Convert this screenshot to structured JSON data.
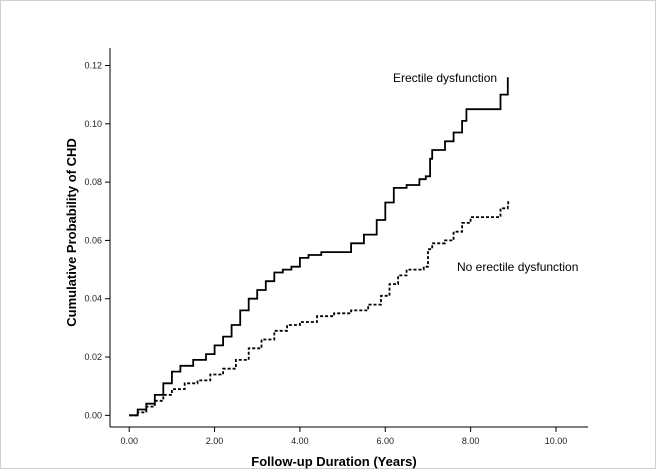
{
  "chart_data": {
    "type": "line",
    "title": "",
    "xlabel": "Follow-up Duration (Years)",
    "ylabel": "Cumulative Probability of CHD",
    "xlim": [
      -0.45,
      10.75
    ],
    "ylim": [
      -0.004,
      0.126
    ],
    "x_ticks": [
      0,
      2,
      4,
      6,
      8,
      10
    ],
    "x_tick_labels": [
      "0.00",
      "2.00",
      "4.00",
      "6.00",
      "8.00",
      "10.00"
    ],
    "y_ticks": [
      0,
      0.02,
      0.04,
      0.06,
      0.08,
      0.1,
      0.12
    ],
    "y_tick_labels": [
      "0.00",
      "0.02",
      "0.04",
      "0.06",
      "0.08",
      "0.10",
      "0.12"
    ],
    "grid": false,
    "legend": "none",
    "series": [
      {
        "name": "Erectile dysfunction",
        "style": "solid",
        "color": "#000000",
        "points": [
          [
            0,
            0
          ],
          [
            0.2,
            0.002
          ],
          [
            0.4,
            0.004
          ],
          [
            0.6,
            0.007
          ],
          [
            0.8,
            0.011
          ],
          [
            1.0,
            0.015
          ],
          [
            1.2,
            0.017
          ],
          [
            1.5,
            0.019
          ],
          [
            1.8,
            0.021
          ],
          [
            2.0,
            0.024
          ],
          [
            2.2,
            0.027
          ],
          [
            2.4,
            0.031
          ],
          [
            2.6,
            0.036
          ],
          [
            2.8,
            0.04
          ],
          [
            3.0,
            0.043
          ],
          [
            3.2,
            0.046
          ],
          [
            3.4,
            0.049
          ],
          [
            3.6,
            0.05
          ],
          [
            3.8,
            0.051
          ],
          [
            4.0,
            0.054
          ],
          [
            4.2,
            0.055
          ],
          [
            4.5,
            0.056
          ],
          [
            4.9,
            0.056
          ],
          [
            5.2,
            0.059
          ],
          [
            5.5,
            0.062
          ],
          [
            5.8,
            0.067
          ],
          [
            6.0,
            0.073
          ],
          [
            6.2,
            0.078
          ],
          [
            6.5,
            0.079
          ],
          [
            6.8,
            0.081
          ],
          [
            6.95,
            0.082
          ],
          [
            7.05,
            0.088
          ],
          [
            7.1,
            0.091
          ],
          [
            7.4,
            0.094
          ],
          [
            7.6,
            0.097
          ],
          [
            7.8,
            0.101
          ],
          [
            7.9,
            0.105
          ],
          [
            8.5,
            0.105
          ],
          [
            8.7,
            0.11
          ],
          [
            8.85,
            0.11
          ],
          [
            8.87,
            0.116
          ]
        ]
      },
      {
        "name": "No erectile dysfunction",
        "style": "dashed",
        "color": "#000000",
        "points": [
          [
            0,
            0
          ],
          [
            0.2,
            0.001
          ],
          [
            0.4,
            0.003
          ],
          [
            0.6,
            0.005
          ],
          [
            0.8,
            0.007
          ],
          [
            1.0,
            0.009
          ],
          [
            1.3,
            0.011
          ],
          [
            1.6,
            0.012
          ],
          [
            1.9,
            0.014
          ],
          [
            2.2,
            0.016
          ],
          [
            2.5,
            0.019
          ],
          [
            2.8,
            0.023
          ],
          [
            3.1,
            0.026
          ],
          [
            3.4,
            0.029
          ],
          [
            3.7,
            0.031
          ],
          [
            4.0,
            0.032
          ],
          [
            4.4,
            0.034
          ],
          [
            4.8,
            0.035
          ],
          [
            5.2,
            0.036
          ],
          [
            5.6,
            0.038
          ],
          [
            5.9,
            0.041
          ],
          [
            6.1,
            0.045
          ],
          [
            6.3,
            0.048
          ],
          [
            6.5,
            0.05
          ],
          [
            6.9,
            0.051
          ],
          [
            7.0,
            0.057
          ],
          [
            7.1,
            0.059
          ],
          [
            7.4,
            0.06
          ],
          [
            7.6,
            0.063
          ],
          [
            7.8,
            0.066
          ],
          [
            8.0,
            0.068
          ],
          [
            8.6,
            0.068
          ],
          [
            8.7,
            0.071
          ],
          [
            8.87,
            0.072
          ],
          [
            8.88,
            0.074
          ]
        ]
      }
    ]
  }
}
